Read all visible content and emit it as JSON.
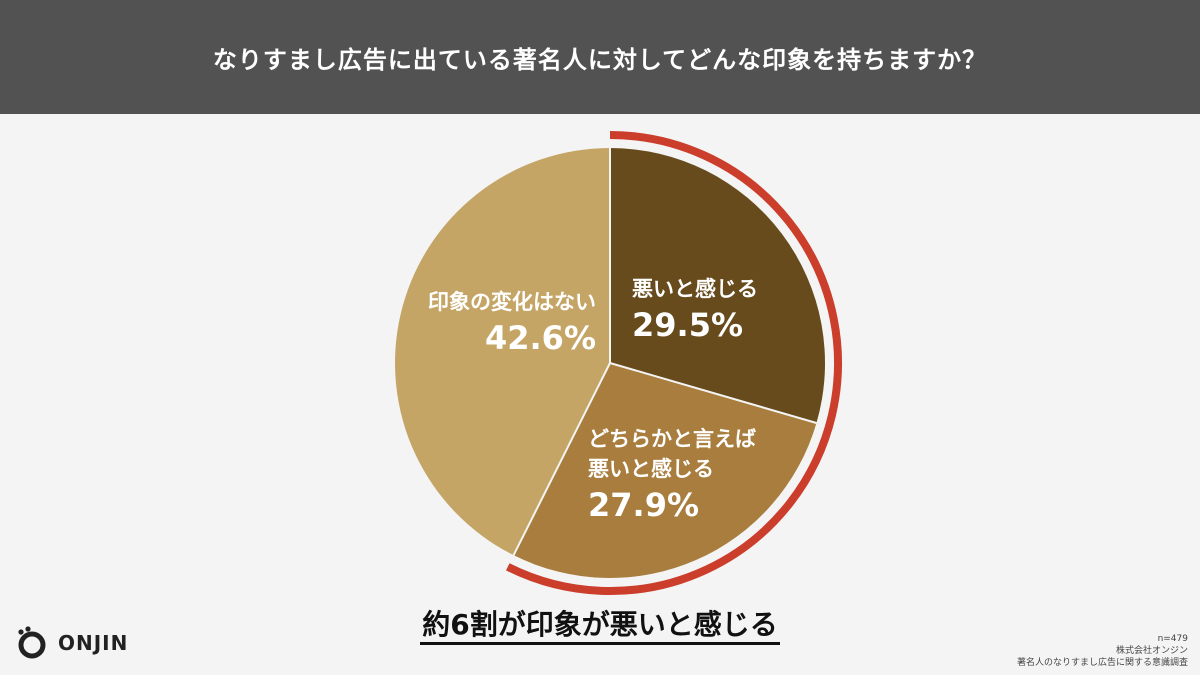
{
  "header": {
    "title": "なりすまし広告に出ている著名人に対してどんな印象を持ちますか？"
  },
  "chart_data": {
    "type": "pie",
    "title": "なりすまし広告に出ている著名人に対してどんな印象を持ちますか？",
    "slices": [
      {
        "label": "悪いと感じる",
        "value": 29.5,
        "display": "29.5%",
        "color": "#684b1c"
      },
      {
        "label": "どちらかと言えば悪いと感じる",
        "value": 27.9,
        "display": "27.9%",
        "color": "#a87d3d"
      },
      {
        "label": "印象の変化はない",
        "value": 42.6,
        "display": "42.6%",
        "color": "#c5a566"
      }
    ],
    "highlight": {
      "covers": [
        "悪いと感じる",
        "どちらかと言えば悪いと感じる"
      ],
      "color": "#cb3e2c"
    }
  },
  "labels": {
    "bad": {
      "name": "悪いと感じる",
      "pct": "29.5%"
    },
    "somewhat_line1": "どちらかと言えば",
    "somewhat_line2": "悪いと感じる",
    "somewhat_pct": "27.9%",
    "nochange": {
      "name": "印象の変化はない",
      "pct": "42.6%"
    }
  },
  "summary": "約6割が印象が悪いと感じる",
  "logo": {
    "text": "ONJIN"
  },
  "footnote": {
    "sample": "n=479",
    "company": "株式会社オンジン",
    "survey": "著名人のなりすまし広告に関する意識調査"
  }
}
